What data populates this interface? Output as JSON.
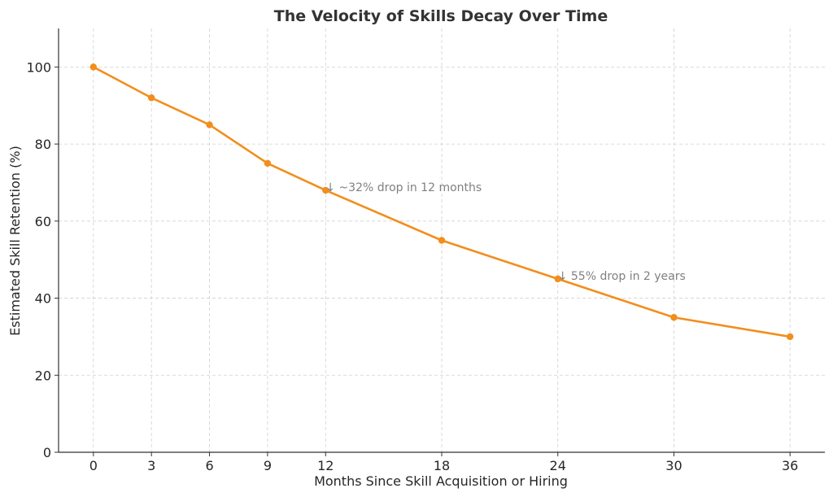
{
  "chart_data": {
    "type": "line",
    "title": "The Velocity of Skills Decay Over Time",
    "xlabel": "Months Since Skill Acquisition or Hiring",
    "ylabel": "Estimated Skill Retention (%)",
    "x": [
      0,
      3,
      6,
      9,
      12,
      18,
      24,
      30,
      36
    ],
    "xticks": [
      0,
      3,
      6,
      9,
      12,
      18,
      24,
      30,
      36
    ],
    "yticks": [
      0,
      20,
      40,
      60,
      80,
      100
    ],
    "xlim": [
      -1.8,
      37.8
    ],
    "ylim": [
      0,
      110
    ],
    "grid": true,
    "series": [
      {
        "values": [
          100,
          92,
          85,
          75,
          68,
          55,
          45,
          35,
          30
        ],
        "color": "#f28e1c"
      }
    ],
    "annotations": [
      {
        "text": "↓ ~32% drop in 12 months",
        "x": 12,
        "y": 68
      },
      {
        "text": "↓ 55% drop in 2 years",
        "x": 24,
        "y": 45
      }
    ]
  }
}
